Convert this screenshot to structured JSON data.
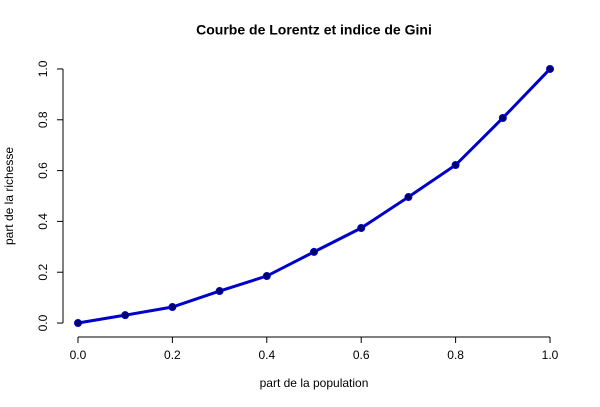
{
  "chart_data": {
    "type": "line",
    "title": "Courbe de Lorentz et indice de Gini",
    "x_label": "part de la population",
    "y_label": "part de la richesse",
    "x": [
      0,
      0.1,
      0.2,
      0.3,
      0.4,
      0.5,
      0.6,
      0.7,
      0.8,
      0.9,
      1
    ],
    "series": [
      {
        "color": "#0000cc",
        "marker_color": "#000066",
        "values": [
          0,
          0.031,
          0.063,
          0.126,
          0.185,
          0.28,
          0.374,
          0.496,
          0.622,
          0.807,
          1
        ]
      }
    ],
    "xlim": [
      -0.04,
      1.04
    ],
    "ylim": [
      -0.04,
      1.04
    ],
    "xticks": [
      {
        "value": 0,
        "label": "0.0"
      },
      0.2,
      0.4,
      0.6,
      0.8,
      {
        "value": 1,
        "label": "1.0"
      }
    ],
    "yticks": [
      {
        "value": 0,
        "label": "0.0"
      },
      0.2,
      0.4,
      0.6,
      0.8,
      {
        "value": 1,
        "label": "1.0"
      }
    ]
  }
}
